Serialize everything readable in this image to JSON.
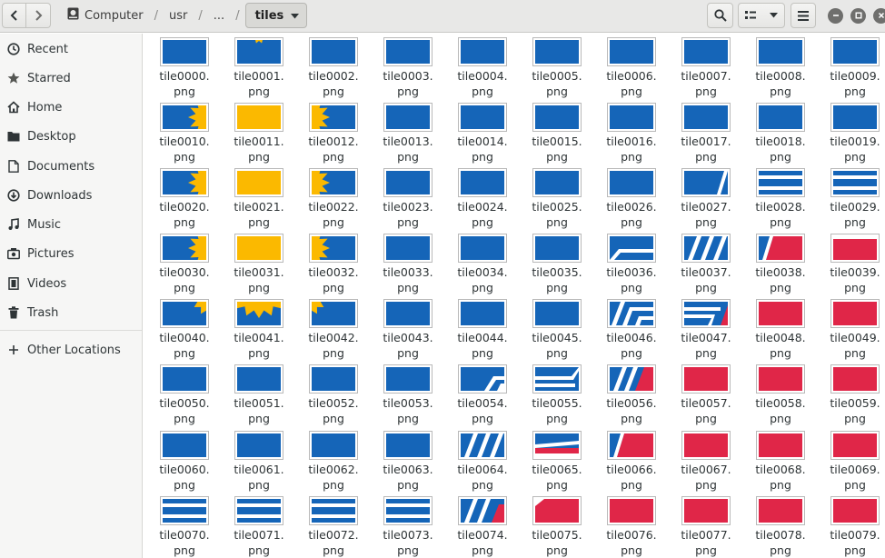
{
  "header": {
    "back_icon": "chevron-left-icon",
    "forward_icon": "chevron-right-icon",
    "breadcrumb": [
      "Computer",
      "usr",
      "..."
    ],
    "current_folder": "tiles",
    "search_icon": "search-icon",
    "view_icon": "list-view-icon",
    "menu_icon": "hamburger-menu-icon"
  },
  "sidebar": {
    "items": [
      {
        "label": "Recent",
        "icon": "clock-icon"
      },
      {
        "label": "Starred",
        "icon": "star-icon"
      },
      {
        "label": "Home",
        "icon": "home-icon"
      },
      {
        "label": "Desktop",
        "icon": "folder-icon"
      },
      {
        "label": "Documents",
        "icon": "document-icon"
      },
      {
        "label": "Downloads",
        "icon": "download-icon"
      },
      {
        "label": "Music",
        "icon": "music-note-icon"
      },
      {
        "label": "Pictures",
        "icon": "camera-icon"
      },
      {
        "label": "Videos",
        "icon": "film-icon"
      },
      {
        "label": "Trash",
        "icon": "trash-icon"
      }
    ],
    "other_locations": {
      "label": "Other Locations",
      "icon": "plus-icon"
    }
  },
  "colors": {
    "blue": "#1565b8",
    "yellow": "#fbb900",
    "red": "#e02648",
    "white": "#ffffff"
  },
  "files": [
    {
      "name": "tile0000.\npng",
      "tile": "blue"
    },
    {
      "name": "tile0001.\npng",
      "tile": "blue-sun-top"
    },
    {
      "name": "tile0002.\npng",
      "tile": "blue"
    },
    {
      "name": "tile0003.\npng",
      "tile": "blue"
    },
    {
      "name": "tile0004.\npng",
      "tile": "blue"
    },
    {
      "name": "tile0005.\npng",
      "tile": "blue"
    },
    {
      "name": "tile0006.\npng",
      "tile": "blue"
    },
    {
      "name": "tile0007.\npng",
      "tile": "blue"
    },
    {
      "name": "tile0008.\npng",
      "tile": "blue"
    },
    {
      "name": "tile0009.\npng",
      "tile": "blue"
    },
    {
      "name": "tile0010.\npng",
      "tile": "sun-right"
    },
    {
      "name": "tile0011.\npng",
      "tile": "sun-center"
    },
    {
      "name": "tile0012.\npng",
      "tile": "sun-left"
    },
    {
      "name": "tile0013.\npng",
      "tile": "blue"
    },
    {
      "name": "tile0014.\npng",
      "tile": "blue"
    },
    {
      "name": "tile0015.\npng",
      "tile": "blue"
    },
    {
      "name": "tile0016.\npng",
      "tile": "blue"
    },
    {
      "name": "tile0017.\npng",
      "tile": "blue"
    },
    {
      "name": "tile0018.\npng",
      "tile": "blue"
    },
    {
      "name": "tile0019.\npng",
      "tile": "blue"
    },
    {
      "name": "tile0020.\npng",
      "tile": "sun-right"
    },
    {
      "name": "tile0021.\npng",
      "tile": "yellow"
    },
    {
      "name": "tile0022.\npng",
      "tile": "sun-left"
    },
    {
      "name": "tile0023.\npng",
      "tile": "blue"
    },
    {
      "name": "tile0024.\npng",
      "tile": "blue"
    },
    {
      "name": "tile0025.\npng",
      "tile": "blue"
    },
    {
      "name": "tile0026.\npng",
      "tile": "blue"
    },
    {
      "name": "tile0027.\npng",
      "tile": "stripe-start"
    },
    {
      "name": "tile0028.\npng",
      "tile": "bands-blue"
    },
    {
      "name": "tile0029.\npng",
      "tile": "bands-blue"
    },
    {
      "name": "tile0030.\npng",
      "tile": "sun-right"
    },
    {
      "name": "tile0031.\npng",
      "tile": "yellow"
    },
    {
      "name": "tile0032.\npng",
      "tile": "sun-left"
    },
    {
      "name": "tile0033.\npng",
      "tile": "blue"
    },
    {
      "name": "tile0034.\npng",
      "tile": "blue"
    },
    {
      "name": "tile0035.\npng",
      "tile": "blue"
    },
    {
      "name": "tile0036.\npng",
      "tile": "bend-blue"
    },
    {
      "name": "tile0037.\npng",
      "tile": "stripes-blue"
    },
    {
      "name": "tile0038.\npng",
      "tile": "red-diag"
    },
    {
      "name": "tile0039.\npng",
      "tile": "red-top-band"
    },
    {
      "name": "tile0040.\npng",
      "tile": "sun-edge-right"
    },
    {
      "name": "tile0041.\npng",
      "tile": "sun-bottom"
    },
    {
      "name": "tile0042.\npng",
      "tile": "sun-edge-left"
    },
    {
      "name": "tile0043.\npng",
      "tile": "blue"
    },
    {
      "name": "tile0044.\npng",
      "tile": "blue"
    },
    {
      "name": "tile0045.\npng",
      "tile": "blue"
    },
    {
      "name": "tile0046.\npng",
      "tile": "stripes-bend"
    },
    {
      "name": "tile0047.\npng",
      "tile": "bends-red"
    },
    {
      "name": "tile0048.\npng",
      "tile": "red"
    },
    {
      "name": "tile0049.\npng",
      "tile": "red"
    },
    {
      "name": "tile0050.\npng",
      "tile": "blue"
    },
    {
      "name": "tile0051.\npng",
      "tile": "blue"
    },
    {
      "name": "tile0052.\npng",
      "tile": "blue"
    },
    {
      "name": "tile0053.\npng",
      "tile": "blue"
    },
    {
      "name": "tile0054.\npng",
      "tile": "corner-stripe"
    },
    {
      "name": "tile0055.\npng",
      "tile": "bends-blue"
    },
    {
      "name": "tile0056.\npng",
      "tile": "stripes-red"
    },
    {
      "name": "tile0057.\npng",
      "tile": "red"
    },
    {
      "name": "tile0058.\npng",
      "tile": "red"
    },
    {
      "name": "tile0059.\npng",
      "tile": "red"
    },
    {
      "name": "tile0060.\npng",
      "tile": "blue"
    },
    {
      "name": "tile0061.\npng",
      "tile": "blue"
    },
    {
      "name": "tile0062.\npng",
      "tile": "blue"
    },
    {
      "name": "tile0063.\npng",
      "tile": "blue"
    },
    {
      "name": "tile0064.\npng",
      "tile": "stripes-blue"
    },
    {
      "name": "tile0065.\npng",
      "tile": "bends-red-bottom"
    },
    {
      "name": "tile0066.\npng",
      "tile": "red-diag"
    },
    {
      "name": "tile0067.\npng",
      "tile": "red"
    },
    {
      "name": "tile0068.\npng",
      "tile": "red"
    },
    {
      "name": "tile0069.\npng",
      "tile": "red"
    },
    {
      "name": "tile0070.\npng",
      "tile": "bands-blue"
    },
    {
      "name": "tile0071.\npng",
      "tile": "bands-blue"
    },
    {
      "name": "tile0072.\npng",
      "tile": "bands-blue"
    },
    {
      "name": "tile0073.\npng",
      "tile": "bands-blue"
    },
    {
      "name": "tile0074.\npng",
      "tile": "stripes-red-corner"
    },
    {
      "name": "tile0075.\npng",
      "tile": "red-white-corner"
    },
    {
      "name": "tile0076.\npng",
      "tile": "red"
    },
    {
      "name": "tile0077.\npng",
      "tile": "red"
    },
    {
      "name": "tile0078.\npng",
      "tile": "red"
    },
    {
      "name": "tile0079.\npng",
      "tile": "red"
    }
  ]
}
